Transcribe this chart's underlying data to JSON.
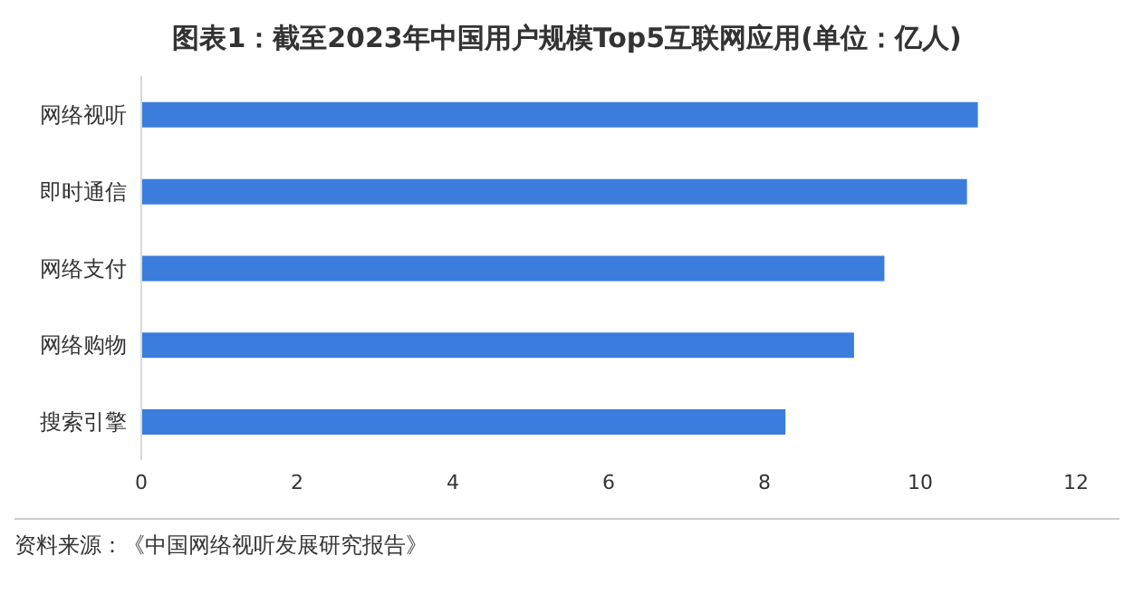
{
  "chart_data": {
    "type": "bar",
    "orientation": "horizontal",
    "title": "图表1：截至2023年中国用户规模Top5互联网应用(单位：亿人)",
    "categories": [
      "网络视听",
      "即时通信",
      "网络支付",
      "网络购物",
      "搜索引擎"
    ],
    "values": [
      10.74,
      10.6,
      9.54,
      9.15,
      8.27
    ],
    "color": "#3b7ddd",
    "xlim": [
      0,
      12
    ],
    "xticks": [
      0,
      2,
      4,
      6,
      8,
      10,
      12
    ],
    "grid": false,
    "annotations": [
      "资料来源：《中国网络视听发展研究报告》"
    ]
  }
}
